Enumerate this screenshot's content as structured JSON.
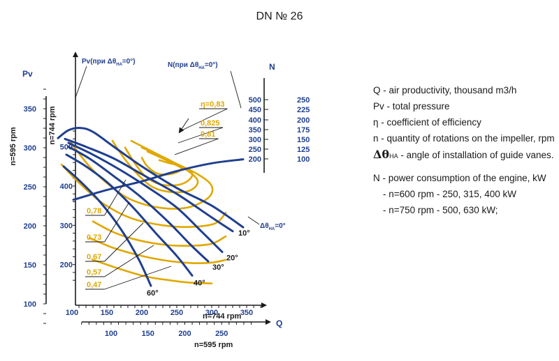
{
  "title": "DN № 26",
  "labels": {
    "pv_axis": "Pv",
    "n_axis": "N",
    "q_axis": "Q",
    "n595_rpm": "n=595 rpm",
    "n744_rpm": "n=744 rpm",
    "pv_curve": "Pv(при Δθ",
    "n_curve": "N(при Δθ",
    "ha": "НА",
    "eq0": "=0°)",
    "dtheta": "Δθ",
    "eq0_plain": "=0°"
  },
  "legend": {
    "q": "Q - air productivity, thousand m3/h",
    "pv": "Pv - total pressure",
    "eta": "η - coefficient of efficiency",
    "n": "n - quantity of rotations on the impeller, rpm",
    "theta_symbol": "Δθ",
    "theta_sub": "НА",
    "theta_text": " - angle of installation of guide vanes.",
    "power": "N - power consumption of the engine, kW",
    "power_600": "- n=600 rpm - 250, 315, 400 kW",
    "power_750": "- n=750 rpm - 500, 630 kW;"
  },
  "colors": {
    "blue": "#1f3f8f",
    "gold": "#e0a800",
    "axis": "#1a1a1a"
  },
  "chart_data": {
    "type": "line",
    "axes": {
      "pv_595": {
        "ticks": [
          "100",
          "150",
          "200",
          "250",
          "300",
          "350"
        ]
      },
      "pv_744": {
        "ticks": [
          "200",
          "300",
          "400",
          "500"
        ]
      },
      "n_inner": {
        "ticks": [
          "200",
          "250",
          "300",
          "350",
          "400",
          "450",
          "500"
        ]
      },
      "n_outer": {
        "ticks": [
          "100",
          "125",
          "150",
          "175",
          "200",
          "225",
          "250"
        ]
      },
      "q_744": {
        "ticks": [
          "100",
          "150",
          "200",
          "250",
          "300",
          "350"
        ]
      },
      "q_595": {
        "ticks": [
          "100",
          "150",
          "200",
          "250"
        ]
      }
    },
    "angle_labels": [
      "10°",
      "20°",
      "30°",
      "40°",
      "60°"
    ],
    "efficiency_labels": [
      "0,83",
      "0,825",
      "0,81",
      "0,78",
      "0,73",
      "0,67",
      "0,57",
      "0,47"
    ],
    "efficiency_prefix": "η=",
    "pressure_curves_744": [
      {
        "angle": "0°",
        "points": [
          [
            80,
            522
          ],
          [
            95,
            542
          ],
          [
            112,
            548
          ],
          [
            130,
            538
          ],
          [
            160,
            500
          ],
          [
            200,
            450
          ],
          [
            250,
            395
          ],
          [
            300,
            350
          ],
          [
            345,
            295
          ]
        ]
      },
      {
        "angle": "10°",
        "points": [
          [
            90,
            520
          ],
          [
            120,
            500
          ],
          [
            160,
            470
          ],
          [
            200,
            430
          ],
          [
            250,
            380
          ],
          [
            300,
            320
          ],
          [
            330,
            285
          ]
        ]
      },
      {
        "angle": "20°",
        "points": [
          [
            95,
            510
          ],
          [
            130,
            480
          ],
          [
            170,
            440
          ],
          [
            210,
            395
          ],
          [
            250,
            345
          ],
          [
            285,
            285
          ],
          [
            315,
            232
          ]
        ]
      },
      {
        "angle": "30°",
        "points": [
          [
            95,
            500
          ],
          [
            125,
            470
          ],
          [
            160,
            425
          ],
          [
            200,
            370
          ],
          [
            240,
            305
          ],
          [
            270,
            250
          ],
          [
            295,
            208
          ]
        ]
      },
      {
        "angle": "40°",
        "points": [
          [
            92,
            480
          ],
          [
            120,
            450
          ],
          [
            150,
            410
          ],
          [
            185,
            350
          ],
          [
            220,
            280
          ],
          [
            250,
            222
          ],
          [
            272,
            172
          ]
        ]
      },
      {
        "angle": "60°",
        "points": [
          [
            88,
            450
          ],
          [
            110,
            415
          ],
          [
            140,
            360
          ],
          [
            170,
            290
          ],
          [
            195,
            215
          ],
          [
            213,
            146
          ]
        ]
      }
    ],
    "power_curve_744": {
      "name": "N",
      "points": [
        [
          102,
          365
        ],
        [
          150,
          390
        ],
        [
          200,
          412
        ],
        [
          250,
          438
        ],
        [
          300,
          458
        ],
        [
          345,
          468
        ]
      ]
    },
    "efficiency_islands_744": [
      {
        "eta": "0,83",
        "points": [
          [
            200,
            472
          ],
          [
            208,
            450
          ],
          [
            222,
            432
          ],
          [
            240,
            430
          ],
          [
            255,
            440
          ],
          [
            254,
            452
          ],
          [
            240,
            458
          ],
          [
            225,
            466
          ]
        ]
      },
      {
        "eta": "0,825",
        "points": [
          [
            176,
            498
          ],
          [
            190,
            458
          ],
          [
            205,
            425
          ],
          [
            225,
            405
          ],
          [
            248,
            402
          ],
          [
            265,
            412
          ],
          [
            272,
            432
          ],
          [
            255,
            448
          ],
          [
            235,
            466
          ],
          [
            208,
            488
          ]
        ]
      },
      {
        "eta": "0,81",
        "points": [
          [
            158,
            515
          ],
          [
            175,
            470
          ],
          [
            195,
            428
          ],
          [
            215,
            398
          ],
          [
            240,
            385
          ],
          [
            268,
            388
          ],
          [
            280,
            412
          ],
          [
            265,
            440
          ],
          [
            235,
            470
          ],
          [
            200,
            498
          ]
        ]
      },
      {
        "eta": "0,78",
        "points": [
          [
            98,
            512
          ],
          [
            125,
            450
          ],
          [
            155,
            400
          ],
          [
            185,
            365
          ],
          [
            225,
            345
          ],
          [
            265,
            345
          ],
          [
            295,
            370
          ],
          [
            300,
            400
          ],
          [
            280,
            430
          ],
          [
            240,
            465
          ],
          [
            185,
            515
          ]
        ]
      },
      {
        "eta": "0,73",
        "points": [
          [
            85,
            455
          ],
          [
            112,
            405
          ],
          [
            145,
            355
          ],
          [
            185,
            318
          ],
          [
            230,
            300
          ],
          [
            270,
            296
          ],
          [
            305,
            305
          ],
          [
            320,
            332
          ]
        ]
      },
      {
        "eta": "0,67",
        "points": [
          [
            130,
            310
          ],
          [
            160,
            282
          ],
          [
            195,
            262
          ],
          [
            235,
            250
          ],
          [
            270,
            248
          ],
          [
            300,
            253
          ],
          [
            320,
            272
          ]
        ]
      },
      {
        "eta": "0,57",
        "points": [
          [
            125,
            268
          ],
          [
            160,
            242
          ],
          [
            200,
            222
          ],
          [
            235,
            210
          ],
          [
            270,
            204
          ],
          [
            300,
            205
          ],
          [
            320,
            212
          ]
        ]
      },
      {
        "eta": "0,47",
        "points": [
          [
            130,
            212
          ],
          [
            170,
            188
          ],
          [
            205,
            170
          ],
          [
            240,
            160
          ],
          [
            270,
            154
          ],
          [
            300,
            152
          ]
        ]
      }
    ]
  }
}
